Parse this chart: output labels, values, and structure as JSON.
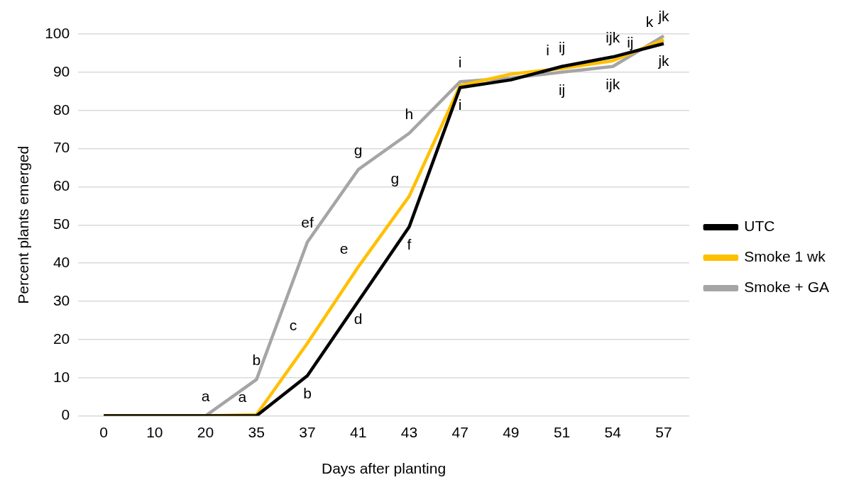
{
  "chart_data": {
    "type": "line",
    "xlabel": "Days after planting",
    "ylabel": "Percent plants emerged",
    "categories": [
      "0",
      "10",
      "20",
      "35",
      "37",
      "41",
      "43",
      "47",
      "49",
      "51",
      "54",
      "57"
    ],
    "series": [
      {
        "name": "UTC",
        "color": "#000000",
        "values": [
          0,
          0,
          0,
          0,
          10.5,
          30,
          49.5,
          86,
          88,
          91.5,
          94,
          97.5
        ]
      },
      {
        "name": "Smoke 1 wk",
        "color": "#ffc000",
        "values": [
          0,
          0,
          0,
          0.3,
          19,
          39,
          57.5,
          86.5,
          89.5,
          91,
          93,
          98.5
        ]
      },
      {
        "name": "Smoke + GA",
        "color": "#a5a5a5",
        "values": [
          0,
          0,
          0,
          9.5,
          45.5,
          64.5,
          74,
          87.5,
          88.5,
          90,
          91.5,
          99.5
        ]
      }
    ],
    "ylim": [
      0,
      100
    ],
    "yticks": [
      0,
      10,
      20,
      30,
      40,
      50,
      60,
      70,
      80,
      90,
      100
    ],
    "grid": "y",
    "legend": "right",
    "marker": "none",
    "line_style": "solid",
    "annotations": [
      {
        "text": "a",
        "x": "20",
        "y": 0
      },
      {
        "text": "b",
        "x": "35",
        "y": 9.5
      },
      {
        "text": "a",
        "x": "35",
        "y": 0.3
      },
      {
        "text": "ef",
        "x": "37",
        "y": 45.5
      },
      {
        "text": "c",
        "x": "37",
        "y": 19
      },
      {
        "text": "b",
        "x": "37",
        "y": 10.5
      },
      {
        "text": "g",
        "x": "41",
        "y": 64.5
      },
      {
        "text": "e",
        "x": "41",
        "y": 39
      },
      {
        "text": "d",
        "x": "41",
        "y": 30
      },
      {
        "text": "h",
        "x": "43",
        "y": 74
      },
      {
        "text": "g",
        "x": "43",
        "y": 57.5
      },
      {
        "text": "f",
        "x": "43",
        "y": 49.5
      },
      {
        "text": "i",
        "x": "47",
        "y": 87.5
      },
      {
        "text": "i",
        "x": "47",
        "y": 86
      },
      {
        "text": "i",
        "x": "51",
        "y": 91
      },
      {
        "text": "ij",
        "x": "51",
        "y": 91.5
      },
      {
        "text": "ij",
        "x": "51",
        "y": 90
      },
      {
        "text": "ijk",
        "x": "54",
        "y": 94
      },
      {
        "text": "ij",
        "x": "54",
        "y": 93
      },
      {
        "text": "ijk",
        "x": "54",
        "y": 91.5
      },
      {
        "text": "k",
        "x": "57",
        "y": 98.5
      },
      {
        "text": "jk",
        "x": "57",
        "y": 99.5
      },
      {
        "text": "jk",
        "x": "57",
        "y": 97.5
      }
    ]
  }
}
